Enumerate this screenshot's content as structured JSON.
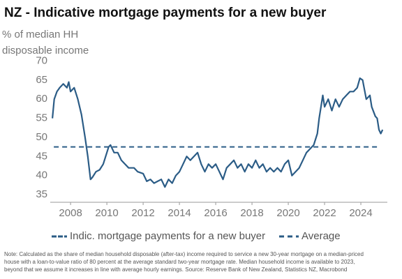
{
  "chart_data": {
    "type": "line",
    "title": "NZ - Indicative mortgage payments for a new buyer",
    "y_label": [
      "% of median HH",
      "disposable income"
    ],
    "x": [
      2007.0,
      2007.1,
      2007.25,
      2007.4,
      2007.6,
      2007.8,
      2007.9,
      2008.0,
      2008.2,
      2008.4,
      2008.6,
      2008.8,
      2008.95,
      2009.1,
      2009.2,
      2009.4,
      2009.6,
      2009.8,
      2010.0,
      2010.1,
      2010.2,
      2010.4,
      2010.6,
      2010.8,
      2011.0,
      2011.2,
      2011.5,
      2011.7,
      2012.0,
      2012.2,
      2012.4,
      2012.6,
      2012.8,
      2013.0,
      2013.2,
      2013.4,
      2013.6,
      2013.8,
      2014.0,
      2014.2,
      2014.4,
      2014.6,
      2014.8,
      2015.0,
      2015.2,
      2015.4,
      2015.6,
      2015.8,
      2016.0,
      2016.2,
      2016.4,
      2016.6,
      2016.8,
      2017.0,
      2017.2,
      2017.4,
      2017.6,
      2017.8,
      2018.0,
      2018.2,
      2018.4,
      2018.6,
      2018.8,
      2019.0,
      2019.2,
      2019.4,
      2019.6,
      2019.8,
      2020.0,
      2020.2,
      2020.4,
      2020.6,
      2020.8,
      2021.0,
      2021.2,
      2021.4,
      2021.6,
      2021.7,
      2021.8,
      2021.9,
      2022.0,
      2022.2,
      2022.4,
      2022.6,
      2022.8,
      2023.0,
      2023.2,
      2023.4,
      2023.6,
      2023.8,
      2023.95,
      2024.1,
      2024.3,
      2024.5,
      2024.6,
      2024.8,
      2024.9,
      2025.0,
      2025.1,
      2025.2
    ],
    "series": [
      {
        "name": "Indic. mortgage payments for a new buyer",
        "color": "#2b5c86",
        "values": [
          55,
          60,
          62,
          63,
          64,
          63,
          64.5,
          62,
          63,
          60,
          56,
          50,
          45,
          39,
          39.5,
          41,
          41.5,
          43,
          46,
          47.5,
          48,
          46,
          46,
          44,
          43,
          42,
          42,
          41,
          40.5,
          38.5,
          39,
          38,
          38.5,
          39,
          37,
          39,
          38,
          40,
          41,
          43,
          45,
          44,
          45,
          46,
          43,
          41,
          43,
          42,
          43,
          41,
          39,
          42,
          43,
          44,
          42,
          43,
          41,
          43,
          42,
          44,
          42,
          43,
          41,
          42,
          41,
          42,
          41,
          43,
          44,
          40,
          41,
          42,
          44,
          46,
          47,
          48,
          51,
          55,
          58,
          61,
          58,
          60,
          57,
          60,
          58,
          60,
          61,
          62,
          62,
          63,
          65.5,
          65,
          60,
          61,
          58,
          55.5,
          55,
          52,
          51,
          52
        ]
      }
    ],
    "average": {
      "name": "Average",
      "value": 47.5,
      "color": "#2b5c86"
    },
    "xlim": [
      2006.88,
      2025.46
    ],
    "xticks": [
      2008,
      2010,
      2012,
      2014,
      2016,
      2018,
      2020,
      2022,
      2024
    ],
    "ylim": [
      33,
      71
    ],
    "yticks": [
      35,
      40,
      45,
      50,
      55,
      60,
      65,
      70
    ],
    "note": [
      "Note: Calculated as the share of median household disposable (after-tax) income required to service a new 30-year mortgage on a median-priced",
      "house with a loan-to-value ratio of 80 percent at the average standard two-year mortgage rate. Median household income is available to 2023,",
      "beyond that we assume it increases in line with average hourly earnings.  Source: Reserve Bank of New Zealand, Statistics NZ, Macrobond"
    ]
  }
}
